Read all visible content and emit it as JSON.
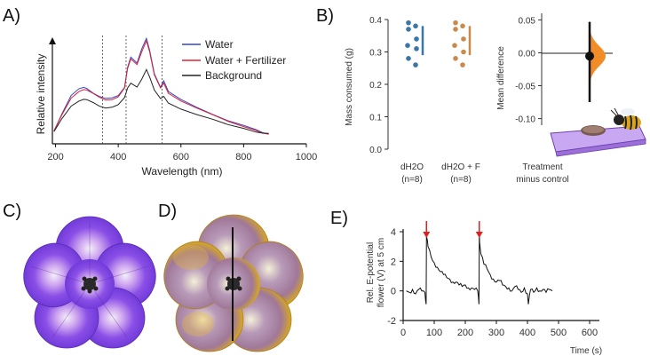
{
  "panels": {
    "a": "A)",
    "b": "B)",
    "c": "C)",
    "d": "D)",
    "e": "E)"
  },
  "chart_data": [
    {
      "id": "A",
      "type": "line",
      "title": "",
      "xlabel": "Wavelength (nm)",
      "ylabel": "Relative intensity",
      "xlim": [
        190,
        1000
      ],
      "ylim": [
        0,
        1.0
      ],
      "xticks": [
        "200",
        "400",
        "600",
        "800",
        "1000"
      ],
      "xtick_values": [
        200,
        400,
        600,
        800,
        1000
      ],
      "legend_position": "top-right",
      "vlines": [
        350,
        425,
        540
      ],
      "x": [
        195,
        220,
        250,
        275,
        290,
        300,
        320,
        340,
        360,
        380,
        400,
        420,
        430,
        440,
        460,
        475,
        490,
        500,
        515,
        535,
        545,
        560,
        600,
        650,
        700,
        750,
        800,
        840,
        860,
        880
      ],
      "series": [
        {
          "name": "Water",
          "color": "#3344cc",
          "values": [
            0.06,
            0.22,
            0.4,
            0.47,
            0.49,
            0.48,
            0.43,
            0.39,
            0.37,
            0.38,
            0.41,
            0.49,
            0.68,
            0.77,
            0.71,
            0.85,
            0.96,
            0.85,
            0.62,
            0.48,
            0.54,
            0.44,
            0.37,
            0.3,
            0.23,
            0.16,
            0.11,
            0.07,
            0.05,
            0.04
          ]
        },
        {
          "name": "Water + Fertilizer",
          "color": "#dd2233",
          "values": [
            0.06,
            0.21,
            0.38,
            0.45,
            0.47,
            0.46,
            0.42,
            0.38,
            0.36,
            0.37,
            0.4,
            0.48,
            0.66,
            0.75,
            0.7,
            0.83,
            0.94,
            0.83,
            0.6,
            0.47,
            0.52,
            0.43,
            0.36,
            0.29,
            0.22,
            0.15,
            0.1,
            0.07,
            0.05,
            0.04
          ]
        },
        {
          "name": "Background",
          "color": "#222222",
          "values": [
            0.05,
            0.18,
            0.31,
            0.36,
            0.37,
            0.36,
            0.33,
            0.3,
            0.29,
            0.3,
            0.32,
            0.38,
            0.47,
            0.52,
            0.49,
            0.57,
            0.66,
            0.58,
            0.45,
            0.37,
            0.4,
            0.34,
            0.28,
            0.22,
            0.17,
            0.12,
            0.09,
            0.06,
            0.05,
            0.04
          ]
        }
      ]
    },
    {
      "id": "B-left",
      "type": "scatter",
      "ylabel": "Mass consumed (g)",
      "ylim": [
        0.0,
        0.4
      ],
      "yticks": [
        "0.0",
        "0.1",
        "0.2",
        "0.3",
        "0.4"
      ],
      "ytick_values": [
        0.0,
        0.1,
        0.2,
        0.3,
        0.4
      ],
      "groups": [
        {
          "label": "dH2O",
          "n_label": "(n=8)",
          "color": "#3a76a8",
          "points": [
            0.39,
            0.38,
            0.37,
            0.34,
            0.32,
            0.31,
            0.28,
            0.26
          ],
          "bar_low": 0.29,
          "bar_high": 0.38
        },
        {
          "label": "dH2O + F",
          "n_label": "(n=8)",
          "color": "#c98a4b",
          "points": [
            0.39,
            0.38,
            0.37,
            0.34,
            0.32,
            0.3,
            0.28,
            0.26
          ],
          "bar_low": 0.29,
          "bar_high": 0.38
        }
      ]
    },
    {
      "id": "B-right",
      "type": "scatter",
      "ylabel": "Mean difference",
      "xlabel_line1": "Treatment",
      "xlabel_line2": "minus control",
      "ylim": [
        -0.11,
        0.06
      ],
      "yticks": [
        "0.05",
        "0.00",
        "-0.05",
        "-0.10"
      ],
      "ytick_values": [
        0.05,
        0.0,
        -0.05,
        -0.1
      ],
      "mean": -0.005,
      "ci_low": -0.075,
      "ci_high": 0.047,
      "color": "#f28c28"
    },
    {
      "id": "E",
      "type": "line",
      "ylabel_line1": "Rel. E-potential",
      "ylabel_line2": "flower (V) at 5 cm",
      "xlabel": "Time (s)",
      "xlim": [
        0,
        600
      ],
      "ylim": [
        -2,
        4
      ],
      "xticks": [
        "0",
        "100",
        "200",
        "300",
        "400",
        "500",
        "600"
      ],
      "xtick_values": [
        0,
        100,
        200,
        300,
        400,
        500,
        600
      ],
      "yticks": [
        "4",
        "2",
        "0",
        "-2"
      ],
      "ytick_values": [
        4,
        2,
        0,
        -2
      ],
      "arrows_at": [
        75,
        245
      ],
      "arrow_color": "#e02020",
      "x": [
        10,
        20,
        30,
        40,
        50,
        60,
        70,
        74,
        75,
        76,
        80,
        90,
        100,
        110,
        120,
        130,
        140,
        150,
        160,
        170,
        180,
        190,
        200,
        210,
        220,
        230,
        240,
        244,
        245,
        246,
        250,
        260,
        270,
        280,
        290,
        300,
        310,
        320,
        330,
        340,
        350,
        360,
        370,
        380,
        390,
        400,
        403,
        410,
        420,
        430,
        440,
        450,
        460,
        470,
        480
      ],
      "values": [
        0.0,
        -0.1,
        0.1,
        -0.2,
        0.1,
        0.0,
        -0.1,
        -0.9,
        4.0,
        3.6,
        3.0,
        2.3,
        1.9,
        1.6,
        1.3,
        1.1,
        0.9,
        0.8,
        0.6,
        0.6,
        0.4,
        0.3,
        0.4,
        0.2,
        0.2,
        0.1,
        0.0,
        -0.9,
        4.0,
        3.3,
        2.5,
        1.8,
        1.5,
        1.1,
        0.8,
        0.6,
        0.7,
        0.4,
        0.3,
        0.2,
        0.0,
        0.3,
        0.1,
        -0.1,
        0.2,
        -0.2,
        -0.9,
        0.1,
        -0.1,
        0.2,
        0.0,
        0.1,
        -0.1,
        0.1,
        0.0
      ]
    }
  ],
  "images": {
    "c": "flower-photo-purple",
    "d": "flower-photo-false-color-split"
  }
}
